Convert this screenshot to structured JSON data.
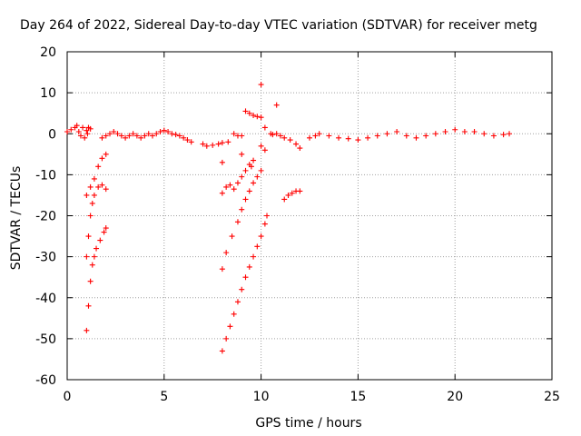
{
  "chart_data": {
    "type": "scatter",
    "title": "Day 264 of 2022, Sidereal Day-to-day VTEC variation (SDTVAR) for receiver metg",
    "xlabel": "GPS time / hours",
    "ylabel": "SDTVAR / TECUs",
    "xlim": [
      0,
      25
    ],
    "ylim": [
      -60,
      20
    ],
    "xticks": [
      0,
      5,
      10,
      15,
      20,
      25
    ],
    "yticks": [
      20,
      10,
      0,
      -10,
      -20,
      -30,
      -40,
      -50,
      -60
    ],
    "x_tick_labels": [
      "0",
      "5",
      "10",
      "15",
      "20",
      "25"
    ],
    "y_tick_labels": [
      "20",
      "10",
      "0",
      "-10",
      "-20",
      "-30",
      "-40",
      "-50",
      "-60"
    ],
    "grid": true,
    "marker": "+",
    "series_color": "#ff0000",
    "series": [
      {
        "name": "SDTVAR",
        "points": [
          [
            0.0,
            0.5
          ],
          [
            0.2,
            1.0
          ],
          [
            0.4,
            1.5
          ],
          [
            0.5,
            2.0
          ],
          [
            0.6,
            0.5
          ],
          [
            0.8,
            1.5
          ],
          [
            1.0,
            0.8
          ],
          [
            1.2,
            1.2
          ],
          [
            0.7,
            -0.5
          ],
          [
            0.9,
            -1.0
          ],
          [
            1.1,
            1.5
          ],
          [
            1.05,
            0.0
          ],
          [
            1.8,
            -1.0
          ],
          [
            2.0,
            -0.5
          ],
          [
            2.2,
            0.0
          ],
          [
            2.4,
            0.5
          ],
          [
            2.6,
            0.0
          ],
          [
            2.8,
            -0.5
          ],
          [
            3.0,
            -1.0
          ],
          [
            3.2,
            -0.5
          ],
          [
            3.4,
            0.0
          ],
          [
            3.6,
            -0.5
          ],
          [
            3.8,
            -1.0
          ],
          [
            4.0,
            -0.5
          ],
          [
            4.2,
            0.0
          ],
          [
            4.4,
            -0.5
          ],
          [
            4.6,
            0.0
          ],
          [
            4.8,
            0.5
          ],
          [
            5.0,
            0.8
          ],
          [
            5.2,
            0.5
          ],
          [
            5.4,
            0.0
          ],
          [
            5.6,
            -0.2
          ],
          [
            5.8,
            -0.5
          ],
          [
            6.0,
            -1.0
          ],
          [
            6.2,
            -1.5
          ],
          [
            6.4,
            -2.0
          ],
          [
            7.0,
            -2.5
          ],
          [
            7.2,
            -3.0
          ],
          [
            7.5,
            -2.8
          ],
          [
            7.8,
            -2.5
          ],
          [
            8.0,
            -2.2
          ],
          [
            8.3,
            -2.0
          ],
          [
            8.6,
            0.0
          ],
          [
            8.8,
            -0.5
          ],
          [
            9.0,
            -0.5
          ],
          [
            9.2,
            5.5
          ],
          [
            9.4,
            5.0
          ],
          [
            9.6,
            4.5
          ],
          [
            9.8,
            4.2
          ],
          [
            10.0,
            4.0
          ],
          [
            10.0,
            12.0
          ],
          [
            10.8,
            7.0
          ],
          [
            10.2,
            1.5
          ],
          [
            10.5,
            0.0
          ],
          [
            10.6,
            -0.2
          ],
          [
            10.8,
            0.0
          ],
          [
            11.0,
            -0.5
          ],
          [
            11.2,
            -1.0
          ],
          [
            11.5,
            -1.5
          ],
          [
            11.8,
            -2.5
          ],
          [
            12.0,
            -3.5
          ],
          [
            12.5,
            -1.0
          ],
          [
            12.8,
            -0.5
          ],
          [
            13.0,
            0.0
          ],
          [
            13.5,
            -0.5
          ],
          [
            14.0,
            -1.0
          ],
          [
            14.5,
            -1.2
          ],
          [
            15.0,
            -1.5
          ],
          [
            15.5,
            -1.0
          ],
          [
            16.0,
            -0.5
          ],
          [
            16.5,
            0.0
          ],
          [
            17.0,
            0.5
          ],
          [
            17.5,
            -0.5
          ],
          [
            18.0,
            -1.0
          ],
          [
            18.5,
            -0.5
          ],
          [
            19.0,
            0.0
          ],
          [
            19.5,
            0.5
          ],
          [
            20.0,
            1.0
          ],
          [
            20.5,
            0.5
          ],
          [
            21.0,
            0.5
          ],
          [
            21.5,
            0.0
          ],
          [
            22.0,
            -0.5
          ],
          [
            22.5,
            -0.2
          ],
          [
            22.8,
            0.0
          ],
          [
            1.0,
            -15.0
          ],
          [
            1.2,
            -13.0
          ],
          [
            1.4,
            -11.0
          ],
          [
            1.6,
            -8.0
          ],
          [
            1.8,
            -6.0
          ],
          [
            2.0,
            -5.0
          ],
          [
            1.0,
            -30.0
          ],
          [
            1.1,
            -25.0
          ],
          [
            1.2,
            -20.0
          ],
          [
            1.3,
            -17.0
          ],
          [
            1.4,
            -15.0
          ],
          [
            1.6,
            -13.0
          ],
          [
            1.8,
            -12.5
          ],
          [
            2.0,
            -13.5
          ],
          [
            1.0,
            -48.0
          ],
          [
            1.1,
            -42.0
          ],
          [
            1.2,
            -36.0
          ],
          [
            1.3,
            -32.0
          ],
          [
            1.4,
            -30.0
          ],
          [
            1.5,
            -28.0
          ],
          [
            1.7,
            -26.0
          ],
          [
            1.9,
            -24.0
          ],
          [
            2.0,
            -23.0
          ],
          [
            8.0,
            -14.5
          ],
          [
            8.2,
            -13.0
          ],
          [
            8.4,
            -12.5
          ],
          [
            8.6,
            -13.5
          ],
          [
            8.8,
            -12.0
          ],
          [
            9.0,
            -10.5
          ],
          [
            9.2,
            -9.0
          ],
          [
            9.4,
            -7.5
          ],
          [
            9.6,
            -6.5
          ],
          [
            8.0,
            -33.0
          ],
          [
            8.2,
            -29.0
          ],
          [
            8.5,
            -25.0
          ],
          [
            8.8,
            -21.5
          ],
          [
            9.0,
            -18.5
          ],
          [
            9.2,
            -16.0
          ],
          [
            9.4,
            -14.0
          ],
          [
            9.6,
            -12.0
          ],
          [
            9.8,
            -10.5
          ],
          [
            10.0,
            -9.0
          ],
          [
            8.0,
            -53.0
          ],
          [
            8.2,
            -50.0
          ],
          [
            8.4,
            -47.0
          ],
          [
            8.6,
            -44.0
          ],
          [
            8.8,
            -41.0
          ],
          [
            9.0,
            -38.0
          ],
          [
            9.2,
            -35.0
          ],
          [
            9.4,
            -32.5
          ],
          [
            9.6,
            -30.0
          ],
          [
            9.8,
            -27.5
          ],
          [
            10.0,
            -25.0
          ],
          [
            10.2,
            -22.0
          ],
          [
            10.3,
            -20.0
          ],
          [
            8.0,
            -7.0
          ],
          [
            9.0,
            -5.0
          ],
          [
            9.5,
            -8.0
          ],
          [
            10.0,
            -3.0
          ],
          [
            10.2,
            -4.0
          ],
          [
            11.2,
            -16.0
          ],
          [
            11.4,
            -15.0
          ],
          [
            11.6,
            -14.5
          ],
          [
            11.8,
            -14.0
          ],
          [
            12.0,
            -14.0
          ]
        ]
      }
    ]
  }
}
